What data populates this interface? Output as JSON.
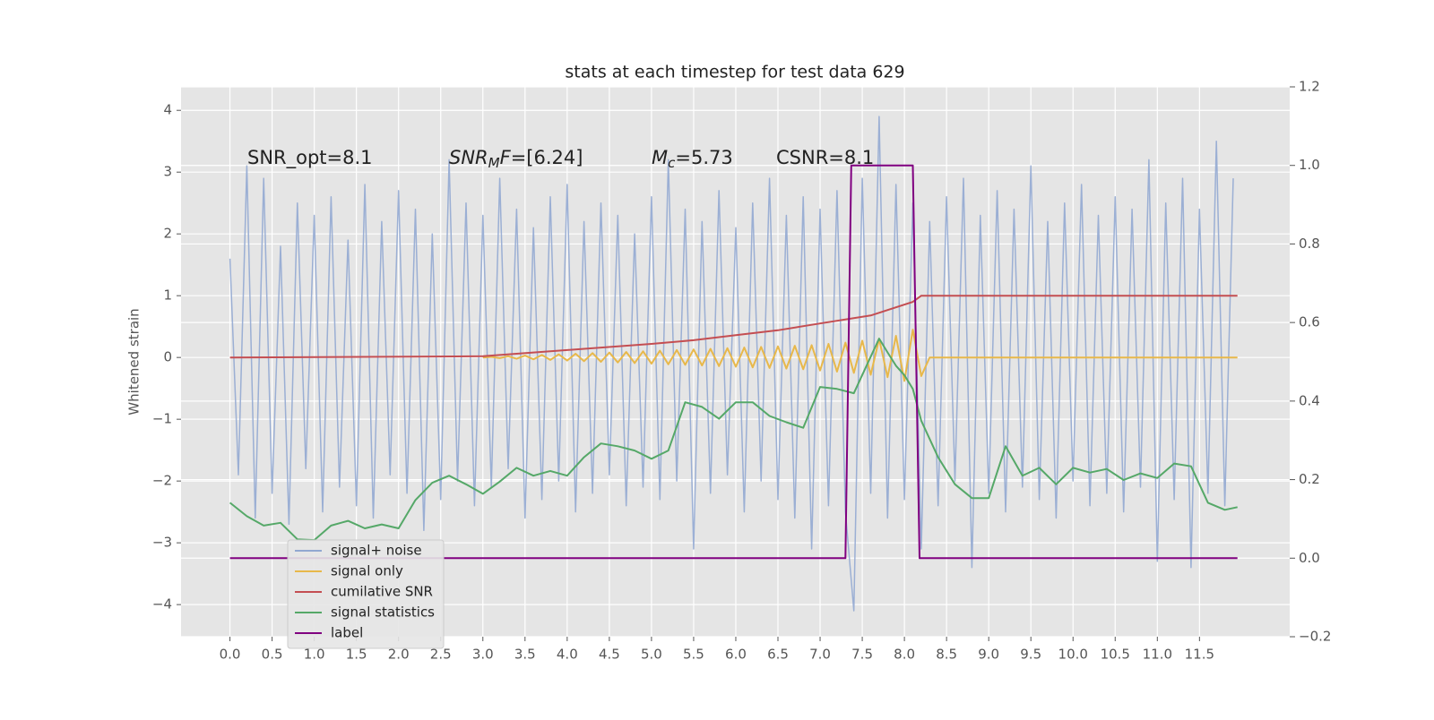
{
  "chart_data": {
    "type": "line",
    "title": "stats at each timestep for test data 629",
    "ylabel": "Whitened strain",
    "grid": true,
    "legend": "lower left",
    "xlim": [
      -0.58,
      12.57
    ],
    "ylim": [
      -4.52,
      4.38
    ],
    "y2lim": [
      -0.2,
      1.2
    ],
    "xticks": [
      {
        "value": 0,
        "label": "0.0"
      },
      0.5,
      {
        "value": 1,
        "label": "1.0"
      },
      1.5,
      {
        "value": 2,
        "label": "2.0"
      },
      2.5,
      {
        "value": 3,
        "label": "3.0"
      },
      3.5,
      {
        "value": 4,
        "label": "4.0"
      },
      4.5,
      {
        "value": 5,
        "label": "5.0"
      },
      5.5,
      {
        "value": 6,
        "label": "6.0"
      },
      6.5,
      {
        "value": 7,
        "label": "7.0"
      },
      7.5,
      {
        "value": 8,
        "label": "8.0"
      },
      8.5,
      {
        "value": 9,
        "label": "9.0"
      },
      9.5,
      {
        "value": 10,
        "label": "10.0"
      },
      10.5,
      {
        "value": 11,
        "label": "11.0"
      },
      11.5
    ],
    "yticks": [
      {
        "value": -4,
        "label": "−4"
      },
      {
        "value": -3,
        "label": "−3"
      },
      {
        "value": -2,
        "label": "−2"
      },
      {
        "value": -1,
        "label": "−1"
      },
      0,
      1,
      2,
      3,
      4
    ],
    "y2ticks": [
      {
        "value": -0.2,
        "label": "−0.2"
      },
      {
        "value": 0,
        "label": "0.0"
      },
      0.2,
      0.4,
      0.6,
      0.8,
      {
        "value": 1,
        "label": "1.0"
      },
      1.2
    ],
    "annotations": [
      [
        {
          "text": "SNR_opt=8.1"
        }
      ],
      [
        {
          "text": "SNR",
          "italic": true
        },
        {
          "text": "M",
          "italic": true,
          "sub": true
        },
        {
          "text": "F",
          "italic": true
        },
        {
          "text": "=[6.24]"
        }
      ],
      [
        {
          "text": "M",
          "italic": true
        },
        {
          "text": "c",
          "italic": true,
          "sub": true
        },
        {
          "text": "=5.73"
        }
      ],
      [
        {
          "text": "CSNR=8.1"
        }
      ]
    ],
    "series": [
      {
        "name": "signal+ noise",
        "color": "#92a8d1",
        "x": [
          0,
          0.1,
          0.2,
          0.3,
          0.4,
          0.5,
          0.6,
          0.7,
          0.8,
          0.9,
          1,
          1.1,
          1.2,
          1.3,
          1.4,
          1.5,
          1.6,
          1.7,
          1.8,
          1.9,
          2,
          2.1,
          2.2,
          2.3,
          2.4,
          2.5,
          2.6,
          2.7,
          2.8,
          2.9,
          3,
          3.1,
          3.2,
          3.3,
          3.4,
          3.5,
          3.6,
          3.7,
          3.8,
          3.9,
          4,
          4.1,
          4.2,
          4.3,
          4.4,
          4.5,
          4.6,
          4.7,
          4.8,
          4.9,
          5,
          5.1,
          5.2,
          5.3,
          5.4,
          5.5,
          5.6,
          5.7,
          5.8,
          5.9,
          6,
          6.1,
          6.2,
          6.3,
          6.4,
          6.5,
          6.6,
          6.7,
          6.8,
          6.9,
          7,
          7.1,
          7.2,
          7.3,
          7.4,
          7.5,
          7.6,
          7.7,
          7.8,
          7.9,
          8,
          8.1,
          8.2,
          8.3,
          8.4,
          8.5,
          8.6,
          8.7,
          8.8,
          8.9,
          9,
          9.1,
          9.2,
          9.3,
          9.4,
          9.5,
          9.6,
          9.7,
          9.8,
          9.9,
          10,
          10.1,
          10.2,
          10.3,
          10.4,
          10.5,
          10.6,
          10.7,
          10.8,
          10.9,
          11,
          11.1,
          11.2,
          11.3,
          11.4,
          11.5,
          11.6,
          11.7,
          11.8,
          11.9
        ],
        "values": [
          1.6,
          -1.9,
          3.1,
          -2.6,
          2.9,
          -2.2,
          1.8,
          -2.7,
          2.5,
          -1.8,
          2.3,
          -2.5,
          2.6,
          -2.1,
          1.9,
          -2.4,
          2.8,
          -2.6,
          2.2,
          -1.9,
          2.7,
          -2.2,
          2.4,
          -2.8,
          2.0,
          -2.3,
          3.2,
          -2.0,
          2.5,
          -2.4,
          2.3,
          -2.1,
          2.9,
          -1.8,
          2.4,
          -2.6,
          2.1,
          -2.3,
          2.6,
          -2.0,
          2.8,
          -2.5,
          2.2,
          -2.2,
          2.5,
          -1.9,
          2.3,
          -2.4,
          2.0,
          -2.1,
          2.6,
          -2.3,
          3.2,
          -2.0,
          2.4,
          -3.1,
          2.2,
          -2.2,
          2.7,
          -1.9,
          2.1,
          -2.5,
          2.5,
          -2.0,
          2.9,
          -2.3,
          2.3,
          -2.6,
          2.6,
          -3.1,
          2.4,
          -2.4,
          2.7,
          -2.5,
          -4.1,
          2.9,
          -2.2,
          3.9,
          -2.6,
          2.8,
          -2.3,
          2.5,
          -3.1,
          2.2,
          -2.4,
          2.6,
          -2.0,
          2.9,
          -3.4,
          2.3,
          -2.2,
          2.7,
          -2.5,
          2.4,
          -2.1,
          3.1,
          -2.3,
          2.2,
          -2.6,
          2.5,
          -2.0,
          2.8,
          -2.4,
          2.3,
          -2.2,
          2.6,
          -2.5,
          2.4,
          -2.1,
          3.2,
          -3.3,
          2.5,
          -2.3,
          2.9,
          -3.4,
          2.4,
          -2.2,
          3.5,
          -2.4,
          2.9
        ]
      },
      {
        "name": "signal only",
        "color": "#e8b84a",
        "x": [
          3,
          3.1,
          3.2,
          3.3,
          3.4,
          3.5,
          3.6,
          3.7,
          3.8,
          3.9,
          4,
          4.1,
          4.2,
          4.3,
          4.4,
          4.5,
          4.6,
          4.7,
          4.8,
          4.9,
          5,
          5.1,
          5.2,
          5.3,
          5.4,
          5.5,
          5.6,
          5.7,
          5.8,
          5.9,
          6,
          6.1,
          6.2,
          6.3,
          6.4,
          6.5,
          6.6,
          6.7,
          6.8,
          6.9,
          7,
          7.1,
          7.2,
          7.3,
          7.4,
          7.5,
          7.6,
          7.7,
          7.8,
          7.9,
          8,
          8.1,
          8.2,
          8.3,
          11.95
        ],
        "values": [
          0,
          0.01,
          -0.01,
          0.02,
          -0.02,
          0.03,
          -0.03,
          0.04,
          -0.04,
          0.05,
          -0.05,
          0.06,
          -0.06,
          0.07,
          -0.07,
          0.08,
          -0.08,
          0.09,
          -0.09,
          0.1,
          -0.1,
          0.11,
          -0.11,
          0.12,
          -0.12,
          0.13,
          -0.13,
          0.14,
          -0.14,
          0.15,
          -0.15,
          0.16,
          -0.16,
          0.17,
          -0.17,
          0.18,
          -0.18,
          0.19,
          -0.19,
          0.2,
          -0.21,
          0.22,
          -0.23,
          0.24,
          -0.25,
          0.27,
          -0.28,
          0.3,
          -0.32,
          0.35,
          -0.38,
          0.45,
          -0.3,
          0,
          0
        ]
      },
      {
        "name": "cumilative SNR",
        "color": "#c44e52",
        "x": [
          0,
          3,
          4,
          5,
          5.5,
          6,
          6.5,
          7,
          7.6,
          8.1,
          8.2,
          11.95
        ],
        "values": [
          0,
          0.02,
          0.12,
          0.22,
          0.28,
          0.36,
          0.44,
          0.55,
          0.68,
          0.9,
          1,
          1
        ]
      },
      {
        "name": "signal statistics",
        "color": "#55a868",
        "axis": "y2",
        "x": [
          0,
          0.2,
          0.4,
          0.6,
          0.8,
          1,
          1.2,
          1.4,
          1.6,
          1.8,
          2,
          2.2,
          2.4,
          2.6,
          2.8,
          3,
          3.2,
          3.4,
          3.6,
          3.8,
          4,
          4.2,
          4.4,
          4.6,
          4.8,
          5,
          5.2,
          5.4,
          5.6,
          5.8,
          6,
          6.2,
          6.4,
          6.6,
          6.8,
          7,
          7.2,
          7.4,
          7.6,
          7.7,
          7.8,
          7.9,
          8,
          8.1,
          8.2,
          8.4,
          8.6,
          8.8,
          9,
          9.2,
          9.4,
          9.6,
          9.8,
          10,
          10.2,
          10.4,
          10.6,
          10.8,
          11,
          11.2,
          11.4,
          11.6,
          11.8,
          11.95
        ],
        "values": [
          0.141,
          0.107,
          0.083,
          0.09,
          0.048,
          0.046,
          0.083,
          0.095,
          0.076,
          0.086,
          0.076,
          0.148,
          0.192,
          0.21,
          0.188,
          0.164,
          0.195,
          0.23,
          0.21,
          0.222,
          0.21,
          0.257,
          0.292,
          0.285,
          0.274,
          0.253,
          0.274,
          0.397,
          0.385,
          0.355,
          0.397,
          0.397,
          0.362,
          0.346,
          0.332,
          0.436,
          0.431,
          0.42,
          0.513,
          0.559,
          0.524,
          0.49,
          0.466,
          0.431,
          0.35,
          0.257,
          0.188,
          0.153,
          0.153,
          0.285,
          0.21,
          0.23,
          0.188,
          0.23,
          0.218,
          0.227,
          0.199,
          0.216,
          0.204,
          0.241,
          0.234,
          0.141,
          0.123,
          0.13
        ]
      },
      {
        "name": "label",
        "color": "#800080",
        "axis": "y2",
        "x": [
          0,
          7.3,
          7.37,
          8.1,
          8.18,
          11.95
        ],
        "values": [
          0,
          0,
          1,
          1,
          0,
          0
        ]
      }
    ]
  }
}
